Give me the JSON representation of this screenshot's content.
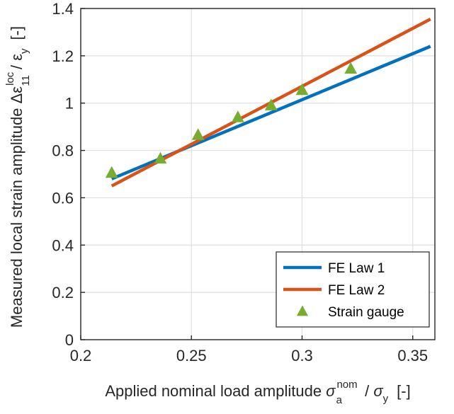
{
  "chart_data": {
    "type": "line",
    "xlabel_prefix": "Applied nominal load amplitude ",
    "xlabel_sym": "σ",
    "xlabel_sup": "nom",
    "xlabel_sub": "a",
    "xlabel_mid": " / ",
    "xlabel_sym2": "σ",
    "xlabel_sub2": "y",
    "xlabel_unit": "[-]",
    "ylabel_prefix": "Measured local strain amplitude ",
    "ylabel_sym": "Δε",
    "ylabel_sup": "loc",
    "ylabel_sub": "11",
    "ylabel_mid": " / ",
    "ylabel_sym2": "ε",
    "ylabel_sub2": "y",
    "ylabel_unit": "[-]",
    "xlim": [
      0.2,
      0.36
    ],
    "ylim": [
      0,
      1.4
    ],
    "xticks": [
      0.2,
      0.25,
      0.3,
      0.35
    ],
    "xtick_labels": [
      "0.2",
      "0.25",
      "0.3",
      "0.35"
    ],
    "yticks": [
      0,
      0.2,
      0.4,
      0.6,
      0.8,
      1.0,
      1.2,
      1.4
    ],
    "ytick_labels": [
      "0",
      "0.2",
      "0.4",
      "0.6",
      "0.8",
      "1",
      "1.2",
      "1.4"
    ],
    "grid": true,
    "legend_position": "bottom-right",
    "series": [
      {
        "name": "FE Law 1",
        "kind": "line",
        "color": "#0072BD",
        "x": [
          0.214,
          0.358
        ],
        "y": [
          0.68,
          1.24
        ]
      },
      {
        "name": "FE Law 2",
        "kind": "line",
        "color": "#D95319",
        "x": [
          0.214,
          0.358
        ],
        "y": [
          0.65,
          1.355
        ]
      },
      {
        "name": "Strain gauge",
        "kind": "marker",
        "color": "#77AC30",
        "x": [
          0.214,
          0.236,
          0.253,
          0.271,
          0.286,
          0.3,
          0.322
        ],
        "y": [
          0.705,
          0.765,
          0.865,
          0.94,
          0.99,
          1.055,
          1.145
        ]
      }
    ]
  }
}
